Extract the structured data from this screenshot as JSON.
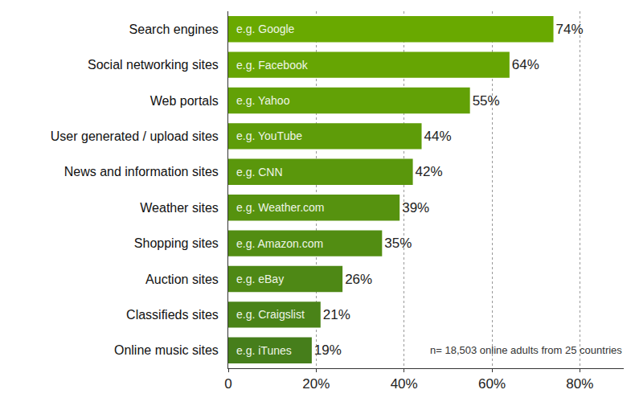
{
  "chart_data": {
    "type": "bar",
    "orientation": "horizontal",
    "categories": [
      "Search engines",
      "Social networking sites",
      "Web portals",
      "User generated / upload sites",
      "News and information sites",
      "Weather sites",
      "Shopping sites",
      "Auction sites",
      "Classifieds sites",
      "Online music sites"
    ],
    "values": [
      74,
      64,
      55,
      44,
      42,
      39,
      35,
      26,
      21,
      19
    ],
    "value_labels": [
      "74%",
      "64%",
      "55%",
      "44%",
      "42%",
      "39%",
      "35%",
      "26%",
      "21%",
      "19%"
    ],
    "data_labels": true,
    "colors": [
      "#69a900",
      "#66a503",
      "#62a106",
      "#5e9c09",
      "#5a970c",
      "#56920f",
      "#528d12",
      "#4e8815",
      "#4a8318",
      "#467e1b"
    ],
    "annotations": [
      {
        "category": "Search engines",
        "text": "e.g. Google"
      },
      {
        "category": "Social networking sites",
        "text": "e.g. Facebook"
      },
      {
        "category": "Web portals",
        "text": "e.g. Yahoo"
      },
      {
        "category": "User generated / upload sites",
        "text": "e.g. YouTube"
      },
      {
        "category": "News and information sites",
        "text": "e.g. CNN"
      },
      {
        "category": "Weather sites",
        "text": "e.g. Weather.com"
      },
      {
        "category": "Shopping sites",
        "text": "e.g. Amazon.com"
      },
      {
        "category": "Auction sites",
        "text": "e.g. eBay"
      },
      {
        "category": "Classifieds sites",
        "text": "e.g. Craigslist"
      },
      {
        "category": "Online music sites",
        "text": "e.g. iTunes"
      }
    ],
    "note": "n= 18,503 online adults from 25 countries",
    "xlim": [
      0,
      90
    ],
    "xticks": [
      0,
      {
        "value": 20,
        "label": "20%"
      },
      {
        "value": 40,
        "label": "40%"
      },
      {
        "value": 60,
        "label": "60%"
      },
      {
        "value": 80,
        "label": "80%"
      }
    ],
    "grid": true
  }
}
